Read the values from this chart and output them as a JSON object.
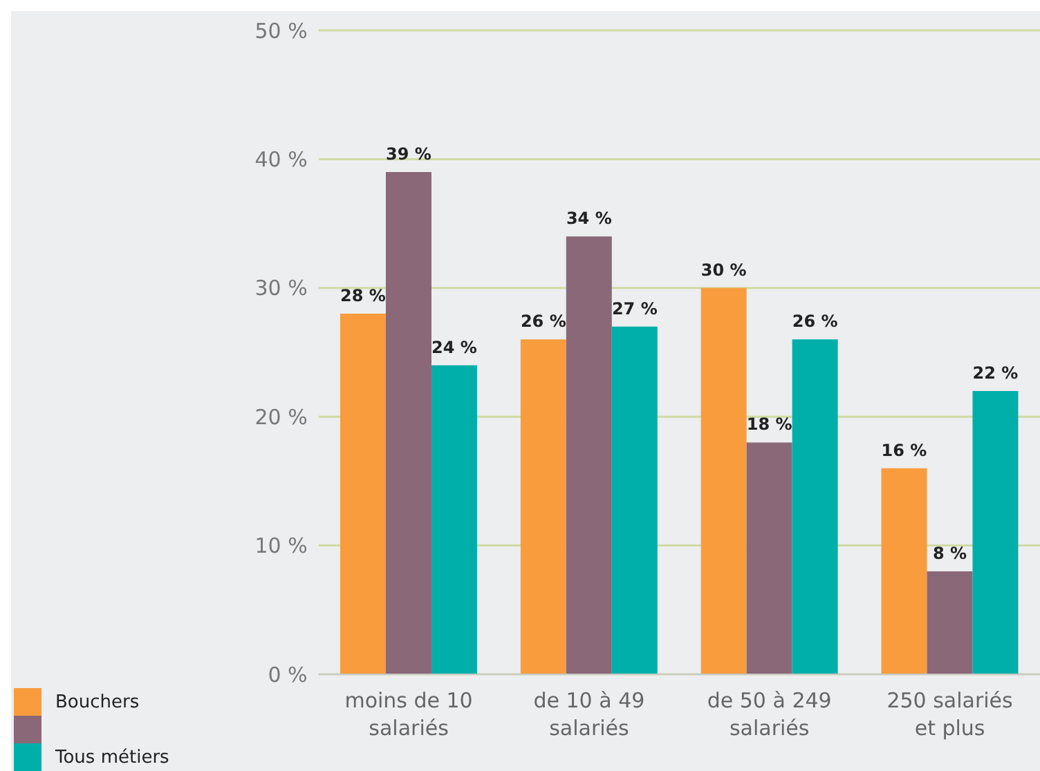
{
  "chart_data": {
    "type": "bar",
    "categories": [
      "moins de 10 salariés",
      "de 10 à 49 salariés",
      "de 50 à 249 salariés",
      "250 salariés et plus"
    ],
    "series": [
      {
        "name": "Bouchers",
        "color": "#f99c3e",
        "values": [
          28,
          26,
          30,
          16
        ],
        "value_labels": [
          "28 %",
          "26 %",
          "30 %",
          "16 %"
        ]
      },
      {
        "color": "#8a6878",
        "values": [
          39,
          34,
          18,
          8
        ],
        "value_labels": [
          "39 %",
          "34 %",
          "18 %",
          "8 %"
        ]
      },
      {
        "name": "Tous métiers",
        "color": "#00afa9",
        "values": [
          24,
          27,
          26,
          22
        ],
        "value_labels": [
          "24 %",
          "27 %",
          "26 %",
          "22 %"
        ]
      }
    ],
    "ylim": [
      0,
      50
    ],
    "yticks": [
      {
        "value": 0,
        "label": "0 %"
      },
      {
        "value": 10,
        "label": "10 %"
      },
      {
        "value": 20,
        "label": "20 %"
      },
      {
        "value": 30,
        "label": "30 %"
      },
      {
        "value": 40,
        "label": "40 %"
      },
      {
        "value": 50,
        "label": "50 %"
      }
    ],
    "grid": "y",
    "legend": "bottom left"
  }
}
